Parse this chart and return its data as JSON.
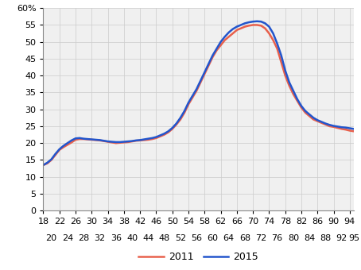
{
  "x_ages": [
    18,
    19,
    20,
    21,
    22,
    23,
    24,
    25,
    26,
    27,
    28,
    29,
    30,
    31,
    32,
    33,
    34,
    35,
    36,
    37,
    38,
    39,
    40,
    41,
    42,
    43,
    44,
    45,
    46,
    47,
    48,
    49,
    50,
    51,
    52,
    53,
    54,
    55,
    56,
    57,
    58,
    59,
    60,
    61,
    62,
    63,
    64,
    65,
    66,
    67,
    68,
    69,
    70,
    71,
    72,
    73,
    74,
    75,
    76,
    77,
    78,
    79,
    80,
    81,
    82,
    83,
    84,
    85,
    86,
    87,
    88,
    89,
    90,
    91,
    92,
    93,
    94,
    95
  ],
  "y_2011": [
    13.5,
    14.0,
    15.0,
    16.5,
    18.0,
    18.8,
    19.5,
    20.2,
    21.0,
    21.2,
    21.2,
    21.1,
    21.0,
    20.9,
    20.8,
    20.6,
    20.4,
    20.2,
    20.0,
    20.1,
    20.2,
    20.3,
    20.5,
    20.7,
    20.8,
    20.9,
    21.0,
    21.2,
    21.5,
    22.0,
    22.5,
    23.2,
    24.2,
    25.5,
    27.0,
    29.0,
    31.5,
    33.5,
    35.5,
    38.0,
    40.5,
    43.0,
    45.5,
    47.5,
    49.0,
    50.5,
    51.5,
    52.5,
    53.5,
    54.0,
    54.5,
    54.8,
    55.0,
    55.0,
    54.8,
    54.0,
    52.5,
    50.5,
    48.0,
    44.0,
    40.0,
    37.0,
    34.5,
    32.5,
    30.5,
    29.0,
    28.0,
    27.0,
    26.5,
    26.0,
    25.5,
    25.0,
    24.8,
    24.5,
    24.2,
    24.0,
    23.7,
    23.5
  ],
  "y_2015": [
    13.5,
    14.2,
    15.2,
    16.8,
    18.2,
    19.2,
    20.0,
    20.8,
    21.4,
    21.5,
    21.3,
    21.2,
    21.1,
    21.0,
    20.9,
    20.7,
    20.5,
    20.4,
    20.3,
    20.3,
    20.4,
    20.5,
    20.6,
    20.8,
    20.9,
    21.1,
    21.3,
    21.5,
    21.8,
    22.3,
    22.8,
    23.5,
    24.5,
    25.8,
    27.5,
    29.5,
    32.0,
    34.0,
    36.0,
    38.5,
    41.0,
    43.5,
    46.0,
    48.0,
    50.0,
    51.5,
    52.8,
    53.8,
    54.5,
    55.0,
    55.5,
    55.8,
    56.0,
    56.1,
    56.0,
    55.5,
    54.5,
    52.5,
    49.5,
    46.0,
    41.5,
    38.0,
    35.5,
    33.0,
    31.0,
    29.5,
    28.5,
    27.5,
    26.8,
    26.3,
    25.8,
    25.4,
    25.1,
    24.9,
    24.7,
    24.6,
    24.4,
    24.2
  ],
  "color_2011": "#e8604c",
  "color_2015": "#2255cc",
  "xticks_row1": [
    18,
    22,
    26,
    30,
    34,
    38,
    42,
    46,
    50,
    54,
    58,
    62,
    66,
    70,
    74,
    78,
    82,
    86,
    90,
    94
  ],
  "xticks_row2": [
    20,
    24,
    28,
    32,
    36,
    40,
    44,
    48,
    52,
    56,
    60,
    64,
    68,
    72,
    76,
    80,
    84,
    88,
    92,
    95
  ],
  "yticks": [
    0,
    5,
    10,
    15,
    20,
    25,
    30,
    35,
    40,
    45,
    50,
    55,
    60
  ],
  "ylim": [
    0,
    60
  ],
  "xlim": [
    18,
    95
  ],
  "bg_color": "#f0f0f0",
  "grid_color": "#cccccc",
  "line_width": 1.8,
  "legend_2011": "2011",
  "legend_2015": "2015",
  "tick_fontsize": 8,
  "legend_fontsize": 9
}
